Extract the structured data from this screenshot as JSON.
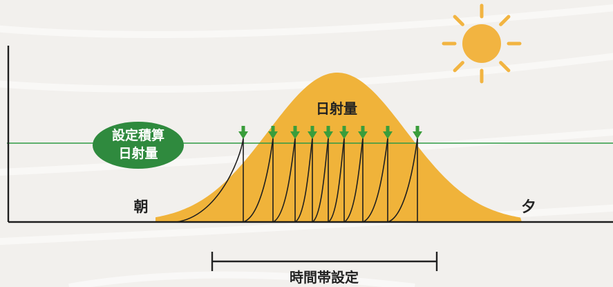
{
  "labels": {
    "radiation": "日射量",
    "threshold_line1": "設定積算",
    "threshold_line2": "日射量",
    "morning": "朝",
    "evening": "夕",
    "time_window": "時間帯設定"
  },
  "colors": {
    "curve_fill": "#f0b33a",
    "sun": "#f2b441",
    "threshold_line": "#2f9a45",
    "badge": "#2f8a3e",
    "arrow": "#3a9d3b",
    "axis": "#1e1e1e",
    "text": "#222222",
    "badge_text": "#ffffff"
  },
  "icons": [
    "sun-icon",
    "down-arrow-icon"
  ],
  "irrigation_trigger_count": 9
}
